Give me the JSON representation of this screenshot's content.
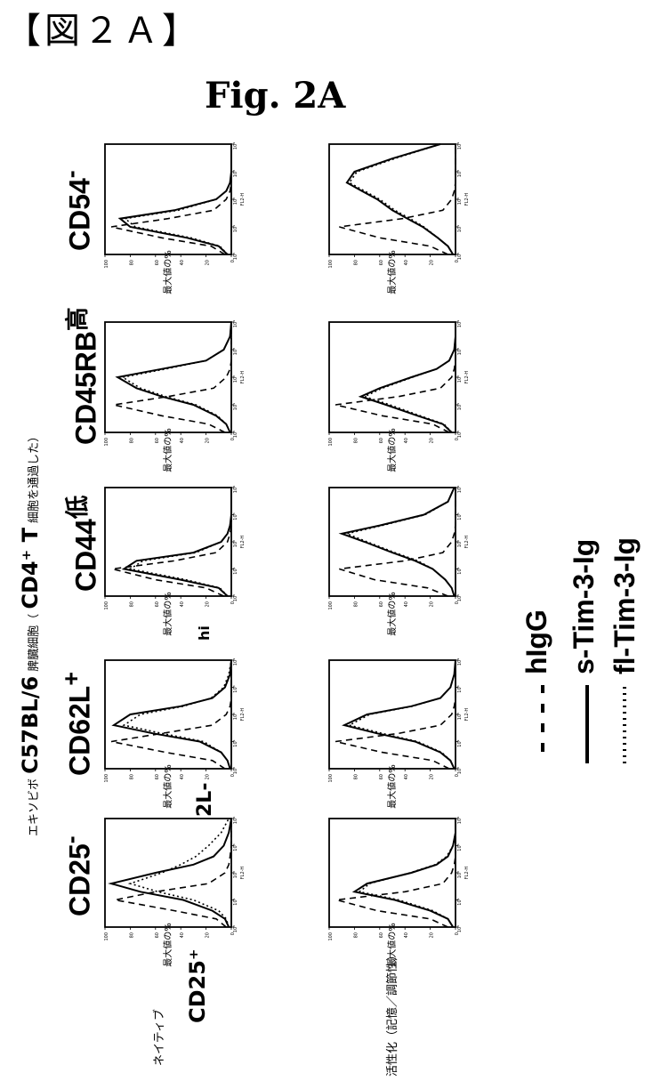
{
  "header": "【図２Ａ】",
  "figure_title": "Fig. 2A",
  "side_caption": {
    "prefix": "エキソビボ",
    "strain": "C57BL/6",
    "mid": "脾臓細胞（",
    "cell": "CD4⁺ T",
    "suffix": "細胞を通過した）"
  },
  "row_labels": [
    "ネイティブ",
    "活性化（記憶／調節性）"
  ],
  "markers": [
    {
      "name": "CD25",
      "sup": "-"
    },
    {
      "name": "CD62L",
      "sup": "+"
    },
    {
      "name": "CD44",
      "sup": "低"
    },
    {
      "name": "CD45RB",
      "sup": "高"
    },
    {
      "name": "CD54",
      "sup": "-"
    }
  ],
  "stray_labels": {
    "cd25_plus": "CD25⁺",
    "l_fragment": "2L-",
    "hi_fragment": "hi"
  },
  "axes": {
    "ylabel": "最大値の%",
    "xlabel": "FL2-H",
    "y_ticks": [
      "0",
      "20",
      "40",
      "60",
      "80",
      "100"
    ],
    "x_ticks": [
      "10⁰",
      "10¹",
      "10²",
      "10³",
      "10⁴"
    ]
  },
  "legend": [
    {
      "label": "hIgG",
      "style": "dashed"
    },
    {
      "label": "s-Tim-3-Ig",
      "style": "solid"
    },
    {
      "label": "fl-Tim-3-Ig",
      "style": "dotted"
    }
  ],
  "chart_data": {
    "type": "line",
    "title": "Fig. 2A",
    "xlabel": "FL2-H",
    "ylabel": "最大値の%",
    "xlim": [
      1,
      10000
    ],
    "x_scale": "log",
    "ylim": [
      0,
      100
    ],
    "x": [
      1,
      2,
      4,
      10,
      20,
      40,
      100,
      200,
      400,
      1000,
      3000,
      10000
    ],
    "panels": [
      {
        "row": "ネイティブ",
        "marker": "CD25-",
        "series": [
          {
            "name": "hIgG",
            "values": [
              4,
              12,
              45,
              92,
              60,
              18,
              5,
              2,
              1,
              0,
              0,
              0
            ]
          },
          {
            "name": "s-Tim-3-Ig",
            "values": [
              2,
              5,
              15,
              38,
              72,
              95,
              60,
              30,
              14,
              6,
              2,
              0
            ]
          },
          {
            "name": "fl-Tim-3-Ig",
            "values": [
              2,
              4,
              10,
              30,
              58,
              80,
              55,
              40,
              28,
              18,
              8,
              2
            ]
          }
        ]
      },
      {
        "row": "ネイティブ",
        "marker": "CD62L+",
        "series": [
          {
            "name": "hIgG",
            "values": [
              5,
              15,
              52,
              95,
              55,
              15,
              4,
              1,
              0,
              0,
              0,
              0
            ]
          },
          {
            "name": "s-Tim-3-Ig",
            "values": [
              1,
              3,
              8,
              25,
              62,
              93,
              80,
              40,
              15,
              5,
              1,
              0
            ]
          },
          {
            "name": "fl-Tim-3-Ig",
            "values": [
              1,
              3,
              8,
              22,
              55,
              85,
              72,
              38,
              16,
              6,
              2,
              0
            ]
          }
        ]
      },
      {
        "row": "ネイティブ",
        "marker": "CD44低",
        "series": [
          {
            "name": "hIgG",
            "values": [
              6,
              20,
              60,
              94,
              45,
              12,
              3,
              1,
              0,
              0,
              0,
              0
            ]
          },
          {
            "name": "s-Tim-3-Ig",
            "values": [
              3,
              10,
              40,
              85,
              75,
              30,
              8,
              3,
              1,
              0,
              0,
              0
            ]
          },
          {
            "name": "fl-Tim-3-Ig",
            "values": [
              3,
              9,
              36,
              80,
              70,
              28,
              8,
              3,
              1,
              0,
              0,
              0
            ]
          }
        ]
      },
      {
        "row": "ネイティブ",
        "marker": "CD45RB高",
        "series": [
          {
            "name": "hIgG",
            "values": [
              5,
              18,
              55,
              93,
              50,
              14,
              4,
              1,
              0,
              0,
              0,
              0
            ]
          },
          {
            "name": "s-Tim-3-Ig",
            "values": [
              1,
              4,
              12,
              30,
              55,
              75,
              90,
              55,
              20,
              6,
              1,
              0
            ]
          },
          {
            "name": "fl-Tim-3-Ig",
            "values": [
              1,
              4,
              11,
              28,
              52,
              72,
              86,
              52,
              20,
              6,
              1,
              0
            ]
          }
        ]
      },
      {
        "row": "ネイティブ",
        "marker": "CD54-",
        "series": [
          {
            "name": "hIgG",
            "values": [
              5,
              16,
              55,
              95,
              50,
              14,
              4,
              1,
              0,
              0,
              0,
              0
            ]
          },
          {
            "name": "s-Tim-3-Ig",
            "values": [
              3,
              10,
              35,
              80,
              88,
              45,
              12,
              4,
              1,
              0,
              0,
              0
            ]
          },
          {
            "name": "fl-Tim-3-Ig",
            "values": [
              3,
              9,
              32,
              76,
              84,
              42,
              12,
              4,
              1,
              0,
              0,
              0
            ]
          }
        ]
      },
      {
        "row": "活性化（記憶／調節性）",
        "marker": "CD25-",
        "series": [
          {
            "name": "hIgG",
            "values": [
              6,
              20,
              62,
              94,
              40,
              10,
              3,
              1,
              0,
              0,
              0,
              0
            ]
          },
          {
            "name": "s-Tim-3-Ig",
            "values": [
              2,
              6,
              20,
              48,
              80,
              70,
              35,
              15,
              6,
              2,
              0,
              0
            ]
          },
          {
            "name": "fl-Tim-3-Ig",
            "values": [
              2,
              6,
              18,
              45,
              76,
              68,
              36,
              16,
              7,
              2,
              0,
              0
            ]
          }
        ]
      },
      {
        "row": "活性化（記憶／調節性）",
        "marker": "CD62L+",
        "series": [
          {
            "name": "hIgG",
            "values": [
              5,
              18,
              58,
              95,
              45,
              12,
              3,
              1,
              0,
              0,
              0,
              0
            ]
          },
          {
            "name": "s-Tim-3-Ig",
            "values": [
              1,
              4,
              12,
              32,
              62,
              88,
              70,
              35,
              12,
              4,
              1,
              0
            ]
          },
          {
            "name": "fl-Tim-3-Ig",
            "values": [
              1,
              4,
              11,
              30,
              58,
              84,
              68,
              34,
              12,
              4,
              1,
              0
            ]
          }
        ]
      },
      {
        "row": "活性化（記憶／調節性）",
        "marker": "CD44低",
        "series": [
          {
            "name": "hIgG",
            "values": [
              6,
              22,
              64,
              92,
              40,
              10,
              3,
              1,
              0,
              0,
              0,
              0
            ]
          },
          {
            "name": "s-Tim-3-Ig",
            "values": [
              1,
              3,
              8,
              18,
              32,
              50,
              72,
              90,
              60,
              25,
              6,
              1
            ]
          },
          {
            "name": "fl-Tim-3-Ig",
            "values": [
              1,
              3,
              8,
              18,
              30,
              48,
              70,
              86,
              58,
              24,
              6,
              1
            ]
          }
        ]
      },
      {
        "row": "活性化（記憶／調節性）",
        "marker": "CD45RB高",
        "series": [
          {
            "name": "hIgG",
            "values": [
              5,
              18,
              58,
              95,
              45,
              12,
              3,
              1,
              0,
              0,
              0,
              0
            ]
          },
          {
            "name": "s-Tim-3-Ig",
            "values": [
              3,
              10,
              30,
              55,
              75,
              60,
              35,
              15,
              5,
              1,
              0,
              0
            ]
          },
          {
            "name": "fl-Tim-3-Ig",
            "values": [
              3,
              9,
              28,
              52,
              72,
              58,
              34,
              15,
              5,
              1,
              0,
              0
            ]
          }
        ]
      },
      {
        "row": "活性化（記憶／調節性）",
        "marker": "CD54-",
        "series": [
          {
            "name": "hIgG",
            "values": [
              6,
              20,
              60,
              92,
              42,
              10,
              3,
              1,
              0,
              0,
              0,
              0
            ]
          },
          {
            "name": "s-Tim-3-Ig",
            "values": [
              2,
              6,
              14,
              26,
              38,
              50,
              62,
              74,
              86,
              80,
              50,
              12
            ]
          },
          {
            "name": "fl-Tim-3-Ig",
            "values": [
              2,
              6,
              14,
              25,
              36,
              48,
              60,
              72,
              84,
              78,
              48,
              12
            ]
          }
        ]
      }
    ]
  }
}
